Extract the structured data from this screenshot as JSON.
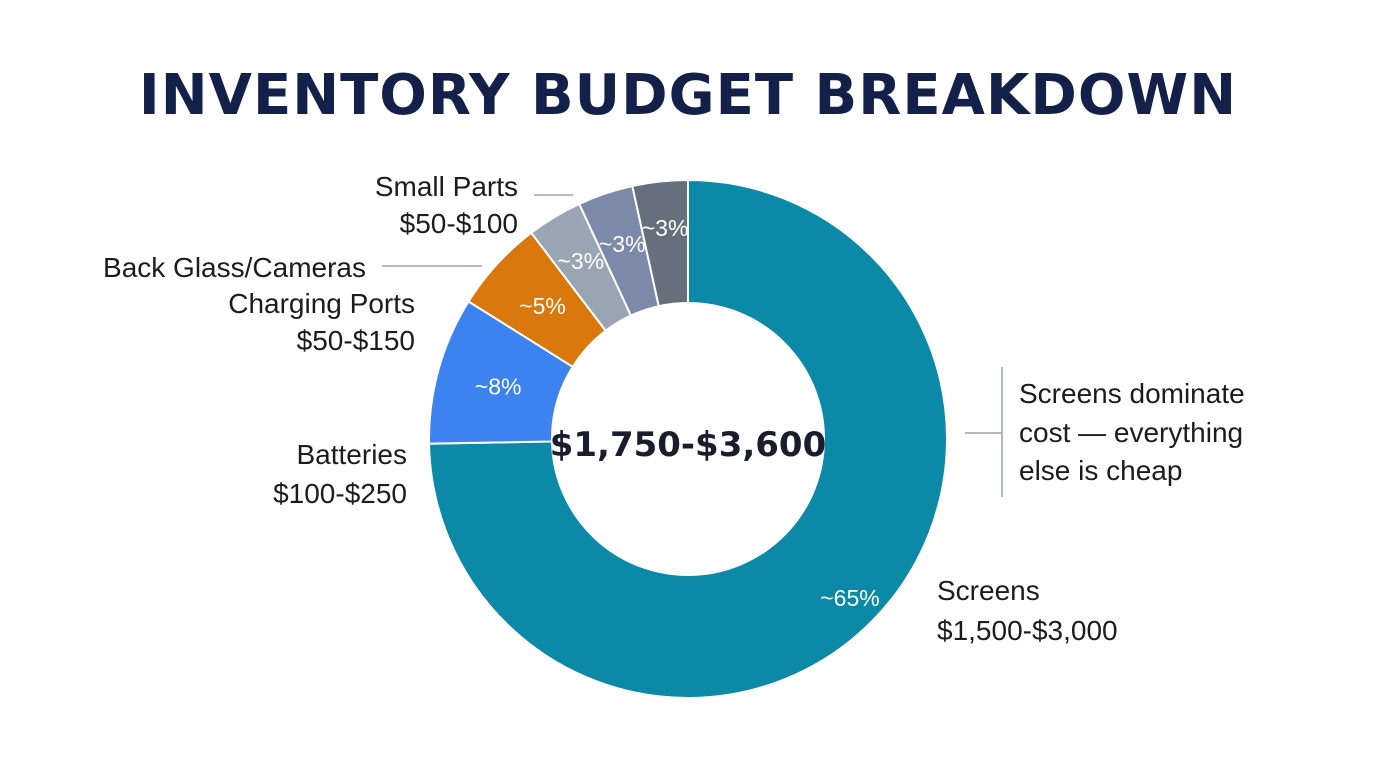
{
  "chart_data": {
    "type": "pie",
    "title": "INVENTORY BUDGET BREAKDOWN",
    "center_label": "$1,750-$3,600",
    "callout": [
      "Screens dominate",
      "cost — everything",
      "else is cheap"
    ],
    "slices": [
      {
        "name": "Screens",
        "range": "$1,500-$3,000",
        "percent": 65,
        "percent_label": "~65%",
        "color": "#0d89a8"
      },
      {
        "name": "Batteries",
        "range": "$100-$250",
        "percent": 8,
        "percent_label": "~8%",
        "color": "#3d83ef"
      },
      {
        "name": "Charging Ports",
        "range": "$50-$150",
        "percent": 5,
        "percent_label": "~5%",
        "color": "#d9780c"
      },
      {
        "name": "Back Glass/Cameras",
        "range": "",
        "percent": 3,
        "percent_label": "~3%",
        "color": "#9aa5b3"
      },
      {
        "name": "Small Parts",
        "range": "$50-$100",
        "percent": 3,
        "percent_label": "~3%",
        "color": "#7d89a8"
      },
      {
        "name": "",
        "range": "",
        "percent": 3,
        "percent_label": "~3%",
        "color": "#66707d"
      }
    ]
  }
}
